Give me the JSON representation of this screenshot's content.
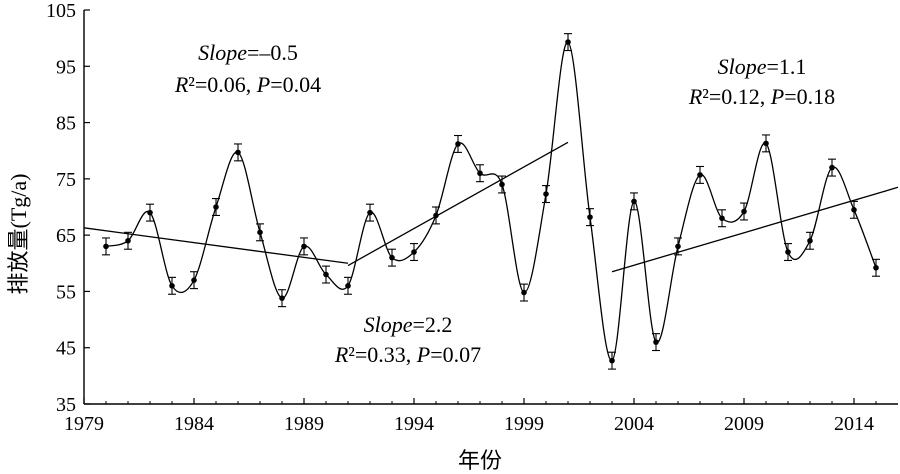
{
  "chart_data": {
    "type": "line",
    "xlabel": "年份",
    "ylabel": "排放量(Tg/a)",
    "xlim": [
      1979,
      2016
    ],
    "ylim": [
      35,
      105
    ],
    "xticks": [
      "1979",
      "1984",
      "1989",
      "1994",
      "1999",
      "2004",
      "2009",
      "2014"
    ],
    "yticks": [
      "35",
      "45",
      "55",
      "65",
      "75",
      "85",
      "95",
      "105"
    ],
    "grid": false,
    "legend": "none",
    "series": [
      {
        "x": [
          1980,
          1981,
          1982,
          1983,
          1984,
          1985,
          1986,
          1987,
          1988,
          1989,
          1990,
          1991,
          1992,
          1993,
          1994,
          1995,
          1996,
          1997,
          1998,
          1999,
          2000,
          2001,
          2002,
          2003,
          2004,
          2005,
          2006,
          2007,
          2008,
          2009,
          2010,
          2011,
          2012,
          2013,
          2014,
          2015
        ],
        "values": [
          63.0,
          64.0,
          69.0,
          56.0,
          57.0,
          70.0,
          79.7,
          65.5,
          53.8,
          63.0,
          58.0,
          56.0,
          69.0,
          61.0,
          62.0,
          68.5,
          81.2,
          76.0,
          74.0,
          54.8,
          72.3,
          99.3,
          68.2,
          42.7,
          71.0,
          46.0,
          63.0,
          75.7,
          68.0,
          69.2,
          81.3,
          62.0,
          64.0,
          77.0,
          69.5,
          59.2
        ],
        "error": [
          1.5,
          1.5,
          1.5,
          1.5,
          1.5,
          1.5,
          1.5,
          1.5,
          1.5,
          1.5,
          1.5,
          1.5,
          1.5,
          1.5,
          1.5,
          1.5,
          1.5,
          1.5,
          1.5,
          1.5,
          1.5,
          1.5,
          1.5,
          1.5,
          1.5,
          1.5,
          1.5,
          1.5,
          1.5,
          1.5,
          1.5,
          1.5,
          1.5,
          1.5,
          1.5,
          1.5
        ]
      }
    ],
    "trendlines": [
      {
        "x": [
          1979,
          1991
        ],
        "y": [
          66.3,
          60.0
        ]
      },
      {
        "x": [
          1991,
          2001
        ],
        "y": [
          59.6,
          81.5
        ]
      },
      {
        "x": [
          2003,
          2016
        ],
        "y": [
          58.5,
          73.5
        ]
      }
    ],
    "annotations": [
      {
        "line1": [
          {
            "text": "Slope",
            "italic": true
          },
          {
            "text": "=–0.5",
            "italic": false
          }
        ],
        "line2": [
          {
            "text": "R",
            "italic": true
          },
          {
            "text": "²=0.06, ",
            "italic": false
          },
          {
            "text": "P",
            "italic": true
          },
          {
            "text": "=0.04",
            "italic": false
          }
        ]
      },
      {
        "line1": [
          {
            "text": "Slope",
            "italic": true
          },
          {
            "text": "=2.2",
            "italic": false
          }
        ],
        "line2": [
          {
            "text": "R",
            "italic": true
          },
          {
            "text": "²=0.33, ",
            "italic": false
          },
          {
            "text": "P",
            "italic": true
          },
          {
            "text": "=0.07",
            "italic": false
          }
        ]
      },
      {
        "line1": [
          {
            "text": "Slope",
            "italic": true
          },
          {
            "text": "=1.1",
            "italic": false
          }
        ],
        "line2": [
          {
            "text": "R",
            "italic": true
          },
          {
            "text": "²=0.12, ",
            "italic": false
          },
          {
            "text": "P",
            "italic": true
          },
          {
            "text": "=0.18",
            "italic": false
          }
        ]
      }
    ]
  }
}
